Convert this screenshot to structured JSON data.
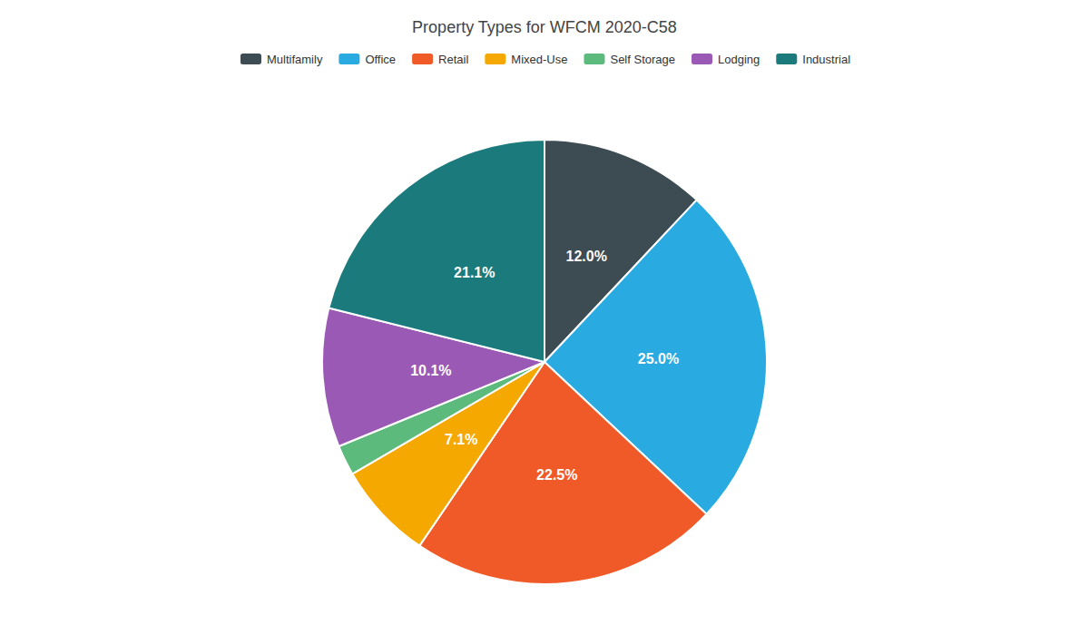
{
  "chart_data": {
    "type": "pie",
    "title": "Property Types for WFCM 2020-C58",
    "categories": [
      "Multifamily",
      "Office",
      "Retail",
      "Mixed-Use",
      "Self Storage",
      "Lodging",
      "Industrial"
    ],
    "values": [
      12.0,
      25.0,
      22.5,
      7.1,
      2.2,
      10.1,
      21.1
    ],
    "value_labels": [
      "12.0%",
      "25.0%",
      "22.5%",
      "7.1%",
      null,
      "10.1%",
      "21.1%"
    ],
    "colors": [
      "#3d4b52",
      "#29abe2",
      "#f05a28",
      "#f5a800",
      "#5dba7d",
      "#9b59b6",
      "#1a7a7c"
    ],
    "data_labels": true,
    "legend": "top"
  }
}
